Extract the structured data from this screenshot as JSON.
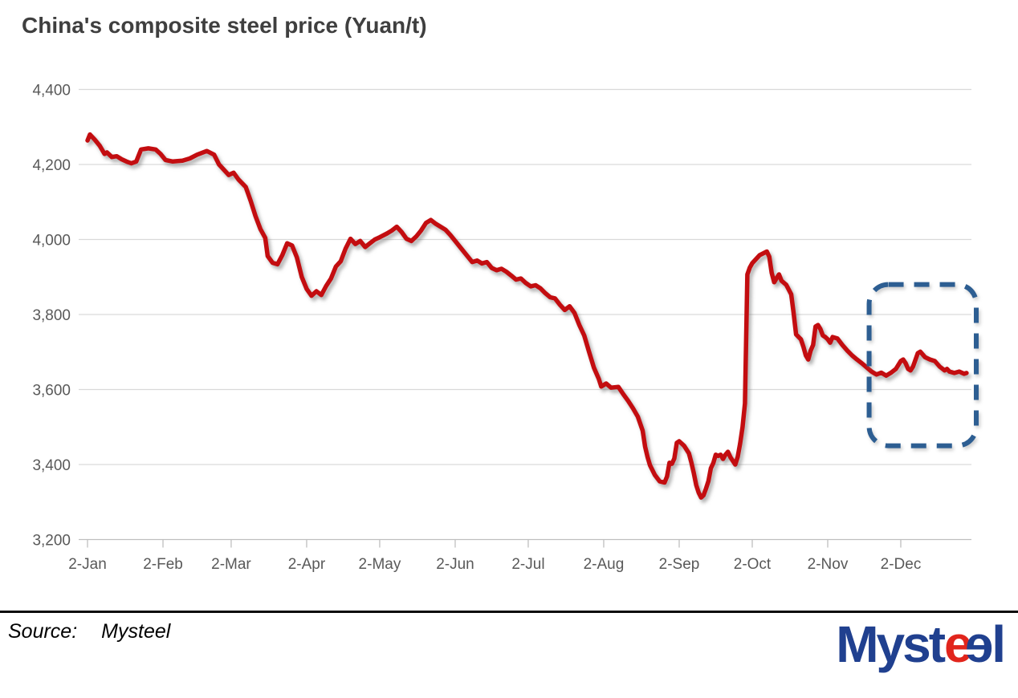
{
  "header": {
    "title": "China's composite steel price (Yuan/t)"
  },
  "footer": {
    "source_label": "Source:",
    "source_value": "Mysteel",
    "logo": {
      "part1": "Myst",
      "part2": "e",
      "part3": "e",
      "part4": "l",
      "blue": "#20408f",
      "red": "#e1251c"
    }
  },
  "chart_data": {
    "type": "line",
    "title": "China's composite steel price (Yuan/t)",
    "xlabel": "",
    "ylabel": "Yuan/t",
    "ylim": [
      3200,
      4400
    ],
    "grid": "horizontal",
    "legend": "none",
    "ytick_values": [
      3200,
      3400,
      3600,
      3800,
      4000,
      4200,
      4400
    ],
    "ytick_labels": [
      "3,200",
      "3,400",
      "3,600",
      "3,800",
      "4,000",
      "4,200",
      "4,400"
    ],
    "xtick_labels": [
      "2-Jan",
      "2-Feb",
      "2-Mar",
      "2-Apr",
      "2-May",
      "2-Jun",
      "2-Jul",
      "2-Aug",
      "2-Sep",
      "2-Oct",
      "2-Nov",
      "2-Dec"
    ],
    "line_color": "#c30d10",
    "annotation_box": {
      "style": "dashed-rounded-rect",
      "color": "#2d5e92",
      "from_date": "11-19",
      "to_date": "1-2",
      "top_value": 3880,
      "bottom_value": 3450
    },
    "series": [
      {
        "name": "China's composite steel price (Yuan/t)",
        "points_format": [
          "month",
          "day",
          "value"
        ],
        "points": [
          [
            1,
            2,
            4264
          ],
          [
            1,
            3,
            4280
          ],
          [
            1,
            5,
            4266
          ],
          [
            1,
            7,
            4250
          ],
          [
            1,
            9,
            4228
          ],
          [
            1,
            10,
            4232
          ],
          [
            1,
            12,
            4220
          ],
          [
            1,
            14,
            4222
          ],
          [
            1,
            16,
            4214
          ],
          [
            1,
            18,
            4208
          ],
          [
            1,
            20,
            4203
          ],
          [
            1,
            22,
            4208
          ],
          [
            1,
            24,
            4240
          ],
          [
            1,
            27,
            4243
          ],
          [
            1,
            30,
            4240
          ],
          [
            2,
            1,
            4228
          ],
          [
            2,
            3,
            4212
          ],
          [
            2,
            6,
            4208
          ],
          [
            2,
            10,
            4210
          ],
          [
            2,
            13,
            4216
          ],
          [
            2,
            16,
            4226
          ],
          [
            2,
            20,
            4236
          ],
          [
            2,
            23,
            4226
          ],
          [
            2,
            25,
            4200
          ],
          [
            2,
            27,
            4186
          ],
          [
            3,
            1,
            4172
          ],
          [
            3,
            3,
            4178
          ],
          [
            3,
            5,
            4160
          ],
          [
            3,
            8,
            4140
          ],
          [
            3,
            10,
            4103
          ],
          [
            3,
            12,
            4062
          ],
          [
            3,
            14,
            4028
          ],
          [
            3,
            16,
            4004
          ],
          [
            3,
            17,
            3956
          ],
          [
            3,
            19,
            3938
          ],
          [
            3,
            21,
            3934
          ],
          [
            3,
            23,
            3958
          ],
          [
            3,
            25,
            3990
          ],
          [
            3,
            27,
            3984
          ],
          [
            3,
            29,
            3952
          ],
          [
            3,
            31,
            3900
          ],
          [
            4,
            2,
            3868
          ],
          [
            4,
            4,
            3850
          ],
          [
            4,
            6,
            3862
          ],
          [
            4,
            8,
            3852
          ],
          [
            4,
            10,
            3876
          ],
          [
            4,
            12,
            3896
          ],
          [
            4,
            14,
            3928
          ],
          [
            4,
            16,
            3942
          ],
          [
            4,
            18,
            3976
          ],
          [
            4,
            20,
            4002
          ],
          [
            4,
            22,
            3988
          ],
          [
            4,
            24,
            3996
          ],
          [
            4,
            26,
            3980
          ],
          [
            4,
            28,
            3990
          ],
          [
            4,
            30,
            4000
          ],
          [
            5,
            2,
            4006
          ],
          [
            5,
            5,
            4016
          ],
          [
            5,
            7,
            4024
          ],
          [
            5,
            9,
            4034
          ],
          [
            5,
            11,
            4020
          ],
          [
            5,
            13,
            4002
          ],
          [
            5,
            15,
            3996
          ],
          [
            5,
            17,
            4008
          ],
          [
            5,
            19,
            4024
          ],
          [
            5,
            21,
            4044
          ],
          [
            5,
            23,
            4052
          ],
          [
            5,
            25,
            4042
          ],
          [
            5,
            27,
            4034
          ],
          [
            5,
            29,
            4026
          ],
          [
            5,
            31,
            4012
          ],
          [
            6,
            2,
            3996
          ],
          [
            6,
            4,
            3980
          ],
          [
            6,
            7,
            3956
          ],
          [
            6,
            9,
            3940
          ],
          [
            6,
            11,
            3944
          ],
          [
            6,
            13,
            3936
          ],
          [
            6,
            15,
            3940
          ],
          [
            6,
            17,
            3924
          ],
          [
            6,
            19,
            3918
          ],
          [
            6,
            21,
            3922
          ],
          [
            6,
            23,
            3914
          ],
          [
            6,
            25,
            3904
          ],
          [
            6,
            27,
            3893
          ],
          [
            6,
            29,
            3896
          ],
          [
            7,
            1,
            3884
          ],
          [
            7,
            3,
            3875
          ],
          [
            7,
            5,
            3878
          ],
          [
            7,
            7,
            3870
          ],
          [
            7,
            9,
            3857
          ],
          [
            7,
            11,
            3846
          ],
          [
            7,
            13,
            3843
          ],
          [
            7,
            15,
            3826
          ],
          [
            7,
            17,
            3812
          ],
          [
            7,
            19,
            3822
          ],
          [
            7,
            21,
            3804
          ],
          [
            7,
            23,
            3772
          ],
          [
            7,
            25,
            3744
          ],
          [
            7,
            27,
            3700
          ],
          [
            7,
            29,
            3658
          ],
          [
            7,
            31,
            3628
          ],
          [
            8,
            1,
            3608
          ],
          [
            8,
            3,
            3616
          ],
          [
            8,
            5,
            3605
          ],
          [
            8,
            8,
            3607
          ],
          [
            8,
            10,
            3588
          ],
          [
            8,
            12,
            3570
          ],
          [
            8,
            14,
            3550
          ],
          [
            8,
            16,
            3528
          ],
          [
            8,
            18,
            3490
          ],
          [
            8,
            19,
            3448
          ],
          [
            8,
            20,
            3420
          ],
          [
            8,
            21,
            3398
          ],
          [
            8,
            23,
            3372
          ],
          [
            8,
            25,
            3355
          ],
          [
            8,
            27,
            3352
          ],
          [
            8,
            28,
            3368
          ],
          [
            8,
            29,
            3405
          ],
          [
            8,
            30,
            3402
          ],
          [
            8,
            31,
            3416
          ],
          [
            9,
            1,
            3458
          ],
          [
            9,
            2,
            3462
          ],
          [
            9,
            4,
            3450
          ],
          [
            9,
            6,
            3430
          ],
          [
            9,
            7,
            3405
          ],
          [
            9,
            8,
            3377
          ],
          [
            9,
            9,
            3345
          ],
          [
            9,
            10,
            3325
          ],
          [
            9,
            11,
            3312
          ],
          [
            9,
            12,
            3318
          ],
          [
            9,
            13,
            3336
          ],
          [
            9,
            14,
            3356
          ],
          [
            9,
            15,
            3390
          ],
          [
            9,
            16,
            3404
          ],
          [
            9,
            17,
            3426
          ],
          [
            9,
            18,
            3423
          ],
          [
            9,
            19,
            3426
          ],
          [
            9,
            20,
            3415
          ],
          [
            9,
            21,
            3426
          ],
          [
            9,
            22,
            3434
          ],
          [
            9,
            23,
            3420
          ],
          [
            9,
            25,
            3400
          ],
          [
            9,
            26,
            3420
          ],
          [
            9,
            27,
            3455
          ],
          [
            9,
            28,
            3500
          ],
          [
            9,
            29,
            3563
          ],
          [
            9,
            30,
            3907
          ],
          [
            10,
            1,
            3925
          ],
          [
            10,
            2,
            3937
          ],
          [
            10,
            5,
            3958
          ],
          [
            10,
            8,
            3968
          ],
          [
            10,
            9,
            3954
          ],
          [
            10,
            10,
            3911
          ],
          [
            10,
            11,
            3886
          ],
          [
            10,
            12,
            3897
          ],
          [
            10,
            13,
            3907
          ],
          [
            10,
            14,
            3890
          ],
          [
            10,
            16,
            3879
          ],
          [
            10,
            18,
            3854
          ],
          [
            10,
            19,
            3804
          ],
          [
            10,
            20,
            3747
          ],
          [
            10,
            22,
            3734
          ],
          [
            10,
            23,
            3714
          ],
          [
            10,
            24,
            3691
          ],
          [
            10,
            25,
            3680
          ],
          [
            10,
            26,
            3704
          ],
          [
            10,
            27,
            3719
          ],
          [
            10,
            28,
            3768
          ],
          [
            10,
            29,
            3772
          ],
          [
            10,
            30,
            3761
          ],
          [
            10,
            31,
            3744
          ],
          [
            11,
            1,
            3740
          ],
          [
            11,
            2,
            3734
          ],
          [
            11,
            3,
            3725
          ],
          [
            11,
            4,
            3740
          ],
          [
            11,
            6,
            3736
          ],
          [
            11,
            8,
            3719
          ],
          [
            11,
            10,
            3704
          ],
          [
            11,
            12,
            3691
          ],
          [
            11,
            14,
            3680
          ],
          [
            11,
            16,
            3670
          ],
          [
            11,
            18,
            3659
          ],
          [
            11,
            20,
            3648
          ],
          [
            11,
            22,
            3640
          ],
          [
            11,
            24,
            3645
          ],
          [
            11,
            26,
            3637
          ],
          [
            11,
            28,
            3645
          ],
          [
            11,
            30,
            3655
          ],
          [
            12,
            2,
            3676
          ],
          [
            12,
            3,
            3680
          ],
          [
            12,
            4,
            3670
          ],
          [
            12,
            5,
            3655
          ],
          [
            12,
            6,
            3651
          ],
          [
            12,
            7,
            3661
          ],
          [
            12,
            9,
            3697
          ],
          [
            12,
            10,
            3701
          ],
          [
            12,
            12,
            3686
          ],
          [
            12,
            14,
            3680
          ],
          [
            12,
            16,
            3676
          ],
          [
            12,
            18,
            3661
          ],
          [
            12,
            20,
            3651
          ],
          [
            12,
            21,
            3655
          ],
          [
            12,
            22,
            3648
          ],
          [
            12,
            24,
            3644
          ],
          [
            12,
            26,
            3648
          ],
          [
            12,
            28,
            3642
          ],
          [
            12,
            29,
            3644
          ]
        ]
      }
    ]
  }
}
